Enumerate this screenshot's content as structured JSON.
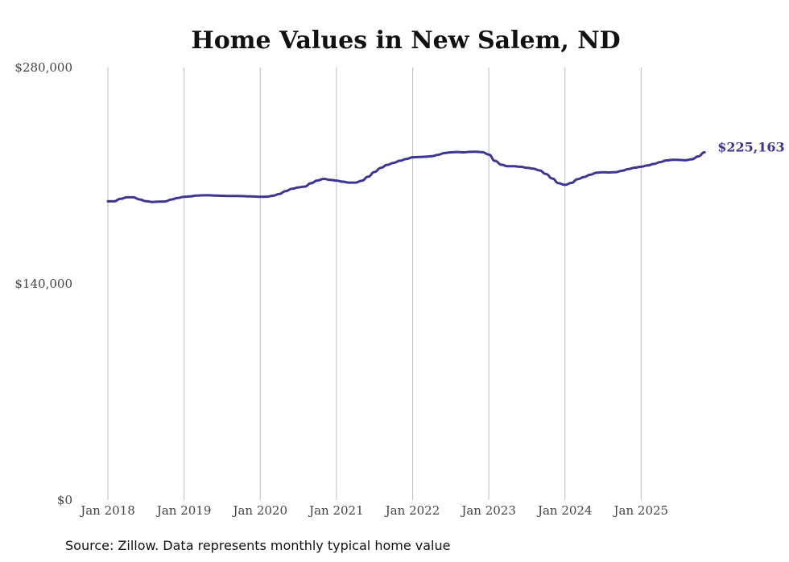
{
  "chart_data": {
    "type": "line",
    "title": "Home Values in New Salem, ND",
    "source_note": "Source: Zillow. Data represents monthly typical home value",
    "xlabel": "",
    "ylabel": "",
    "ylim": [
      0,
      280000
    ],
    "y_ticks": [
      0,
      140000,
      280000
    ],
    "y_tick_labels": [
      "$0",
      "$140,000",
      "$280,000"
    ],
    "x_start": "2018-01",
    "x_tick_labels": [
      "Jan 2018",
      "Jan 2019",
      "Jan 2020",
      "Jan 2021",
      "Jan 2022",
      "Jan 2023",
      "Jan 2024",
      "Jan 2025"
    ],
    "x_tick_month_index": [
      0,
      12,
      24,
      36,
      48,
      60,
      72,
      84
    ],
    "x_range_month_index": [
      0,
      94
    ],
    "grid": "vertical",
    "line_color": "#3d3590",
    "series": [
      {
        "name": "Typical home value",
        "end_label": "$225,163",
        "values": [
          193400,
          193400,
          195000,
          196000,
          196000,
          194600,
          193500,
          193000,
          193200,
          193300,
          194600,
          195600,
          196300,
          196600,
          197100,
          197300,
          197300,
          197100,
          197000,
          196900,
          196900,
          196800,
          196600,
          196500,
          196300,
          196400,
          197000,
          198200,
          200000,
          201500,
          202400,
          202900,
          205100,
          206900,
          207900,
          207300,
          206800,
          206100,
          205500,
          205500,
          206700,
          209300,
          212400,
          215100,
          217000,
          218300,
          219700,
          220800,
          221900,
          222100,
          222300,
          222600,
          223500,
          224600,
          225100,
          225300,
          225100,
          225400,
          225500,
          225200,
          223700,
          219600,
          217100,
          216100,
          216100,
          215800,
          215100,
          214600,
          213400,
          211100,
          208200,
          205100,
          204000,
          205300,
          207700,
          209100,
          210700,
          211900,
          212200,
          212100,
          212300,
          213200,
          214300,
          215200,
          215800,
          216600,
          217600,
          218800,
          219900,
          220300,
          220200,
          220000,
          220600,
          222500,
          225163
        ]
      }
    ]
  }
}
